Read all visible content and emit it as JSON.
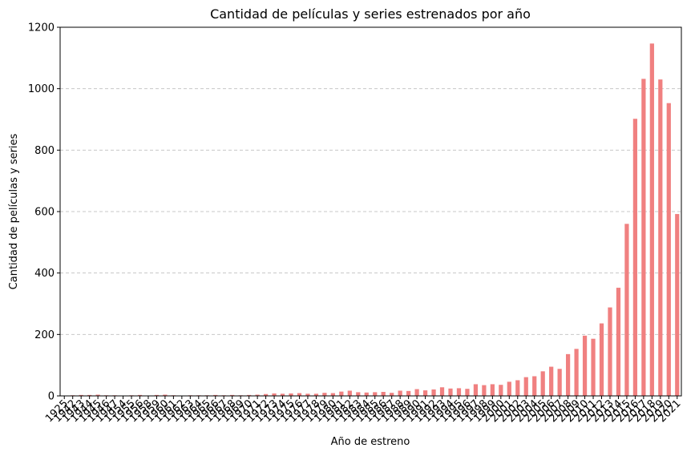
{
  "chart_data": {
    "type": "bar",
    "title": "Cantidad de películas y series estrenados por año",
    "xlabel": "Año de estreno",
    "ylabel": "Cantidad de películas y series",
    "ylim": [
      0,
      1200
    ],
    "yticks": [
      "0",
      "200",
      "400",
      "600",
      "800",
      "1000",
      "1200"
    ],
    "grid": "y-dashed",
    "bar_color": "#f08080",
    "categories": [
      "1925",
      "1942",
      "1943",
      "1944",
      "1945",
      "1946",
      "1947",
      "1954",
      "1955",
      "1956",
      "1958",
      "1959",
      "1960",
      "1961",
      "1962",
      "1963",
      "1964",
      "1965",
      "1966",
      "1967",
      "1968",
      "1969",
      "1970",
      "1971",
      "1972",
      "1973",
      "1974",
      "1975",
      "1976",
      "1977",
      "1978",
      "1979",
      "1980",
      "1981",
      "1982",
      "1983",
      "1984",
      "1985",
      "1986",
      "1987",
      "1988",
      "1989",
      "1990",
      "1991",
      "1992",
      "1993",
      "1994",
      "1995",
      "1996",
      "1997",
      "1998",
      "1999",
      "2000",
      "2001",
      "2002",
      "2003",
      "2004",
      "2005",
      "2006",
      "2007",
      "2008",
      "2009",
      "2010",
      "2011",
      "2012",
      "2013",
      "2014",
      "2015",
      "2016",
      "2017",
      "2018",
      "2019",
      "2020",
      "2021"
    ],
    "values": [
      1,
      2,
      3,
      3,
      4,
      2,
      2,
      1,
      2,
      3,
      1,
      3,
      4,
      2,
      1,
      2,
      2,
      2,
      3,
      2,
      3,
      2,
      3,
      4,
      6,
      8,
      7,
      8,
      9,
      7,
      7,
      10,
      9,
      14,
      17,
      12,
      11,
      12,
      13,
      10,
      17,
      16,
      22,
      18,
      21,
      28,
      24,
      25,
      23,
      38,
      35,
      38,
      36,
      46,
      51,
      61,
      64,
      80,
      95,
      88,
      136,
      153,
      196,
      186,
      236,
      288,
      352,
      560,
      902,
      1032,
      1147,
      1030,
      953,
      592
    ]
  }
}
